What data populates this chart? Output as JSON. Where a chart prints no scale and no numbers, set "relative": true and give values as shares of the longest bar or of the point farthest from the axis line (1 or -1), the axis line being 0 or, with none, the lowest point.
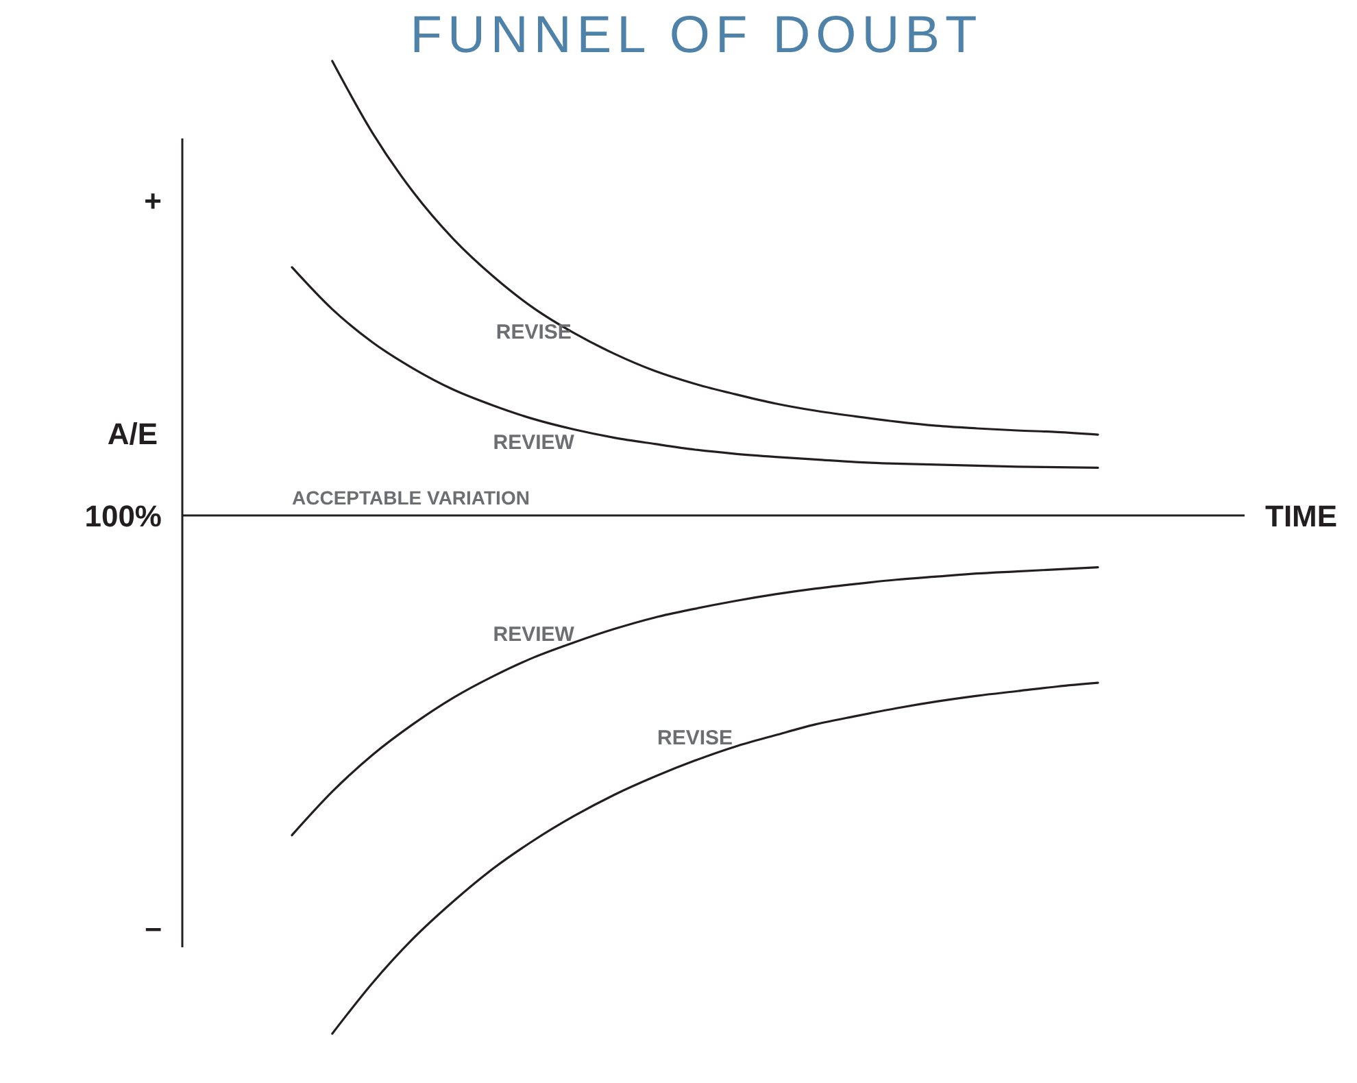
{
  "chart_data": {
    "type": "line",
    "title": "FUNNEL OF DOUBT",
    "xlabel": "TIME",
    "ylabel": "A/E",
    "relative": true,
    "categories": [
      null,
      null,
      null,
      null,
      null,
      null,
      null,
      null,
      null,
      null,
      null,
      null,
      null,
      null,
      null,
      null,
      null,
      null,
      null,
      null,
      null
    ],
    "series": [
      {
        "name": "REVISE",
        "color": "#231f20",
        "values": [
          null,
          0.877,
          0.738,
          0.625,
          0.534,
          0.461,
          0.4,
          0.352,
          0.312,
          0.279,
          0.254,
          0.234,
          0.216,
          0.202,
          0.191,
          0.181,
          0.173,
          0.168,
          0.164,
          0.161,
          0.156
        ]
      },
      {
        "name": "REVIEW",
        "color": "#231f20",
        "values": [
          0.479,
          0.398,
          0.334,
          0.284,
          0.243,
          0.212,
          0.186,
          0.166,
          0.15,
          0.138,
          0.127,
          0.119,
          0.113,
          0.108,
          0.103,
          0.1,
          0.098,
          0.096,
          0.094,
          0.093,
          0.092
        ]
      },
      {
        "name": "REVIEW",
        "color": "#231f20",
        "values": [
          -0.617,
          -0.533,
          -0.462,
          -0.403,
          -0.352,
          -0.31,
          -0.274,
          -0.245,
          -0.219,
          -0.197,
          -0.18,
          -0.165,
          -0.152,
          -0.141,
          -0.132,
          -0.124,
          -0.118,
          -0.112,
          -0.108,
          -0.104,
          -0.1
        ]
      },
      {
        "name": "REVISE",
        "color": "#231f20",
        "values": [
          null,
          -1,
          -0.902,
          -0.817,
          -0.745,
          -0.681,
          -0.627,
          -0.58,
          -0.539,
          -0.504,
          -0.473,
          -0.446,
          -0.424,
          -0.403,
          -0.387,
          -0.372,
          -0.359,
          -0.348,
          -0.339,
          -0.33,
          -0.323
        ]
      }
    ],
    "annotations": [
      "+",
      "100%",
      "–",
      "ACCEPTABLE VARIATION"
    ]
  }
}
